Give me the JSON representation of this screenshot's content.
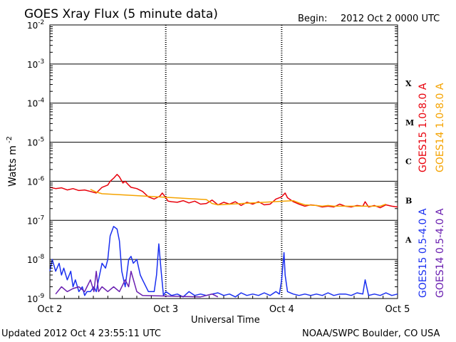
{
  "chart_data": {
    "type": "line",
    "title": "GOES Xray Flux (5 minute data)",
    "begin_label": "Begin:",
    "begin_value": "2012 Oct 2 0000 UTC",
    "ylabel": "Watts m",
    "ylabel_sup": "-2",
    "xlabel": "Universal Time",
    "yscale": "log",
    "ylim": [
      1e-09,
      0.01
    ],
    "xlim": [
      0,
      3
    ],
    "x_unit": "days since Oct 2 0000 UTC",
    "grid": true,
    "x_ticks": [
      {
        "value": 0,
        "label": "Oct 2"
      },
      {
        "value": 1,
        "label": "Oct 3"
      },
      {
        "value": 2,
        "label": "Oct 4"
      },
      {
        "value": 3,
        "label": "Oct 5"
      }
    ],
    "y_ticks": [
      {
        "base": "10",
        "exp": "-2",
        "value": 0.01
      },
      {
        "base": "10",
        "exp": "-3",
        "value": 0.001
      },
      {
        "base": "10",
        "exp": "-4",
        "value": 0.0001
      },
      {
        "base": "10",
        "exp": "-5",
        "value": 1e-05
      },
      {
        "base": "10",
        "exp": "-6",
        "value": 1e-06
      },
      {
        "base": "10",
        "exp": "-7",
        "value": 1e-07
      },
      {
        "base": "10",
        "exp": "-8",
        "value": 1e-08
      },
      {
        "base": "10",
        "exp": "-9",
        "value": 1e-09
      }
    ],
    "flare_classes": [
      {
        "label": "X",
        "value": 0.00032
      },
      {
        "label": "M",
        "value": 3.2e-05
      },
      {
        "label": "C",
        "value": 3.2e-06
      },
      {
        "label": "B",
        "value": 3.2e-07
      },
      {
        "label": "A",
        "value": 3.2e-08
      }
    ],
    "series": [
      {
        "name": "GOES15 1.0-8.0 A",
        "color": "#e8000b",
        "x": [
          0.0,
          0.05,
          0.1,
          0.15,
          0.2,
          0.25,
          0.3,
          0.35,
          0.4,
          0.45,
          0.5,
          0.52,
          0.55,
          0.58,
          0.6,
          0.63,
          0.65,
          0.68,
          0.7,
          0.75,
          0.8,
          0.85,
          0.9,
          0.95,
          0.97,
          1.0,
          1.02,
          1.05,
          1.1,
          1.15,
          1.2,
          1.25,
          1.3,
          1.35,
          1.4,
          1.45,
          1.5,
          1.55,
          1.6,
          1.65,
          1.7,
          1.75,
          1.8,
          1.85,
          1.9,
          1.95,
          2.0,
          2.03,
          2.05,
          2.1,
          2.15,
          2.2,
          2.25,
          2.3,
          2.35,
          2.4,
          2.45,
          2.5,
          2.55,
          2.6,
          2.65,
          2.7,
          2.72,
          2.75,
          2.8,
          2.85,
          2.9,
          2.95,
          3.0
        ],
        "values": [
          7e-07,
          6.5e-07,
          6.8e-07,
          6e-07,
          6.5e-07,
          5.8e-07,
          6e-07,
          5.5e-07,
          5e-07,
          7e-07,
          8e-07,
          1e-06,
          1.2e-06,
          1.5e-06,
          1.3e-06,
          9e-07,
          1e-06,
          8e-07,
          7e-07,
          6.5e-07,
          5.5e-07,
          4e-07,
          3.5e-07,
          4.2e-07,
          5e-07,
          3.8e-07,
          3.1e-07,
          3e-07,
          2.9e-07,
          3.2e-07,
          2.8e-07,
          3.1e-07,
          2.6e-07,
          2.7e-07,
          3.3e-07,
          2.5e-07,
          2.9e-07,
          2.6e-07,
          3e-07,
          2.4e-07,
          2.9e-07,
          2.6e-07,
          3e-07,
          2.5e-07,
          2.6e-07,
          3.5e-07,
          4e-07,
          5e-07,
          3.8e-07,
          3e-07,
          2.6e-07,
          2.3e-07,
          2.5e-07,
          2.4e-07,
          2.2e-07,
          2.3e-07,
          2.2e-07,
          2.6e-07,
          2.3e-07,
          2.2e-07,
          2.4e-07,
          2.3e-07,
          3e-07,
          2.2e-07,
          2.4e-07,
          2.1e-07,
          2.5e-07,
          2.3e-07,
          2.2e-07
        ]
      },
      {
        "name": "GOES14 1.0-8.0 A",
        "color": "#f5a300",
        "x": [
          0.35,
          0.4,
          0.45,
          1.35,
          1.4,
          1.45,
          2.1,
          2.15,
          2.2,
          2.3,
          2.35,
          2.4,
          2.45,
          2.85,
          2.9
        ],
        "values": [
          6.2e-07,
          5.3e-07,
          4.8e-07,
          3.4e-07,
          2.7e-07,
          2.5e-07,
          3.2e-07,
          2.8e-07,
          2.5e-07,
          2.4e-07,
          2.3e-07,
          2.4e-07,
          2.3e-07,
          2.3e-07,
          2.6e-07
        ]
      },
      {
        "name": "GOES15 0.5-4.0 A",
        "color": "#1a2ff0",
        "x": [
          0.0,
          0.02,
          0.05,
          0.08,
          0.1,
          0.12,
          0.15,
          0.18,
          0.2,
          0.22,
          0.25,
          0.28,
          0.3,
          0.32,
          0.35,
          0.38,
          0.4,
          0.42,
          0.45,
          0.48,
          0.5,
          0.52,
          0.55,
          0.58,
          0.6,
          0.62,
          0.65,
          0.68,
          0.7,
          0.72,
          0.75,
          0.78,
          0.8,
          0.85,
          0.9,
          0.92,
          0.94,
          0.96,
          0.98,
          1.0,
          1.05,
          1.1,
          1.15,
          1.2,
          1.25,
          1.3,
          1.35,
          1.4,
          1.45,
          1.5,
          1.55,
          1.6,
          1.65,
          1.7,
          1.75,
          1.8,
          1.85,
          1.9,
          1.95,
          1.98,
          2.0,
          2.02,
          2.03,
          2.05,
          2.1,
          2.15,
          2.2,
          2.25,
          2.3,
          2.35,
          2.4,
          2.45,
          2.5,
          2.55,
          2.6,
          2.65,
          2.7,
          2.72,
          2.75,
          2.8,
          2.85,
          2.9,
          2.95,
          3.0
        ],
        "values": [
          5e-09,
          1e-08,
          5e-09,
          8e-09,
          4e-09,
          6e-09,
          3e-09,
          5e-09,
          2e-09,
          3e-09,
          1.5e-09,
          2e-09,
          1.2e-09,
          1.5e-09,
          1.5e-09,
          2e-09,
          1.5e-09,
          3e-09,
          8e-09,
          6e-09,
          1e-08,
          4e-08,
          7e-08,
          6e-08,
          3e-08,
          5e-09,
          2e-09,
          1e-08,
          1.2e-08,
          8e-09,
          1e-08,
          4e-09,
          3e-09,
          1.5e-09,
          1.5e-09,
          4e-09,
          2.5e-08,
          5e-09,
          1.2e-09,
          1.5e-09,
          1.2e-09,
          1.3e-09,
          1.1e-09,
          1.5e-09,
          1.2e-09,
          1.3e-09,
          1.2e-09,
          1.3e-09,
          1.4e-09,
          1.2e-09,
          1.3e-09,
          1.1e-09,
          1.4e-09,
          1.2e-09,
          1.3e-09,
          1.2e-09,
          1.4e-09,
          1.2e-09,
          1.5e-09,
          1.3e-09,
          3e-09,
          1.5e-08,
          4e-09,
          1.5e-09,
          1.3e-09,
          1.2e-09,
          1.3e-09,
          1.2e-09,
          1.3e-09,
          1.2e-09,
          1.4e-09,
          1.2e-09,
          1.3e-09,
          1.3e-09,
          1.2e-09,
          1.4e-09,
          1.3e-09,
          3e-09,
          1.2e-09,
          1.3e-09,
          1.2e-09,
          1.4e-09,
          1.2e-09,
          1.3e-09
        ]
      },
      {
        "name": "GOES14 0.5-4.0 A",
        "color": "#6a1fb0",
        "x": [
          0.05,
          0.1,
          0.15,
          0.2,
          0.25,
          0.3,
          0.32,
          0.35,
          0.38,
          0.4,
          0.42,
          0.45,
          0.5,
          0.55,
          0.6,
          0.65,
          0.68,
          0.7,
          0.75,
          0.8,
          1.3,
          1.35,
          1.4,
          1.45
        ],
        "values": [
          1.3e-09,
          2e-09,
          1.5e-09,
          1.8e-09,
          2e-09,
          1.5e-09,
          2e-09,
          3e-09,
          1.5e-09,
          5e-09,
          1.5e-09,
          2e-09,
          1.5e-09,
          2e-09,
          1.5e-09,
          3e-09,
          2e-09,
          5e-09,
          1.5e-09,
          1.2e-09,
          1.1e-09,
          1.2e-09,
          1.3e-09,
          1.1e-09
        ]
      }
    ]
  },
  "footer": {
    "updated": "Updated 2012 Oct  4 23:55:11 UTC",
    "credit": "NOAA/SWPC Boulder, CO USA"
  }
}
